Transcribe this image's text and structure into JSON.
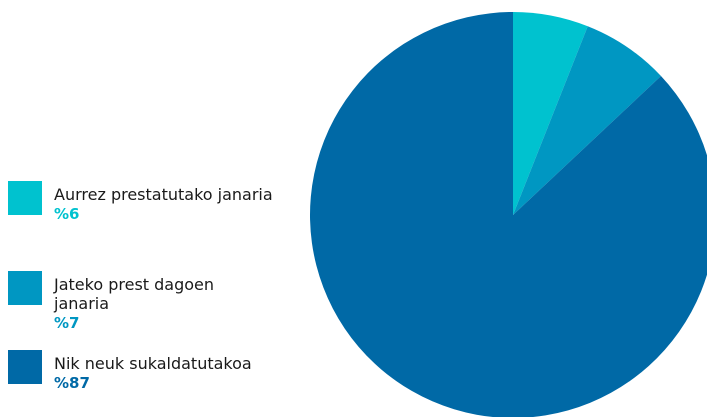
{
  "chart_data": {
    "type": "pie",
    "categories": [
      "Aurrez prestatutako janaria",
      "Jateko prest dagoen janaria",
      "Nik neuk sukaldatutakoa"
    ],
    "values": [
      6,
      7,
      87
    ],
    "value_labels": [
      "%6",
      "%7",
      "%87"
    ],
    "colors": [
      "#00c2cf",
      "#0097c2",
      "#0069a6"
    ]
  }
}
